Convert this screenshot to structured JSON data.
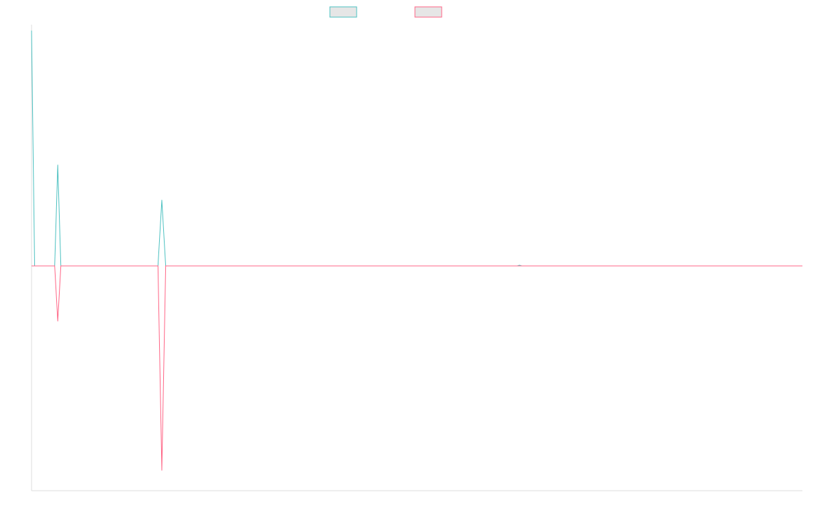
{
  "chart_data": {
    "type": "line",
    "x_range": [
      0,
      1000
    ],
    "ylim": [
      -1100,
      1100
    ],
    "baseline": 0,
    "legend_position": "top",
    "grid": false,
    "series": [
      {
        "name": "",
        "color": "#4bc0c0",
        "points": [
          [
            0,
            1073
          ],
          [
            4,
            0
          ],
          [
            30,
            0
          ],
          [
            34,
            460
          ],
          [
            38,
            0
          ],
          [
            164,
            0
          ],
          [
            169,
            300
          ],
          [
            174,
            0
          ],
          [
            630,
            0
          ],
          [
            633,
            3
          ],
          [
            636,
            0
          ],
          [
            1000,
            0
          ]
        ]
      },
      {
        "name": "",
        "color": "#ff6384",
        "points": [
          [
            0,
            0
          ],
          [
            30,
            0
          ],
          [
            34,
            -270
          ],
          [
            38,
            0
          ],
          [
            164,
            0
          ],
          [
            169,
            -1000
          ],
          [
            174,
            0
          ],
          [
            1000,
            0
          ]
        ]
      }
    ]
  }
}
